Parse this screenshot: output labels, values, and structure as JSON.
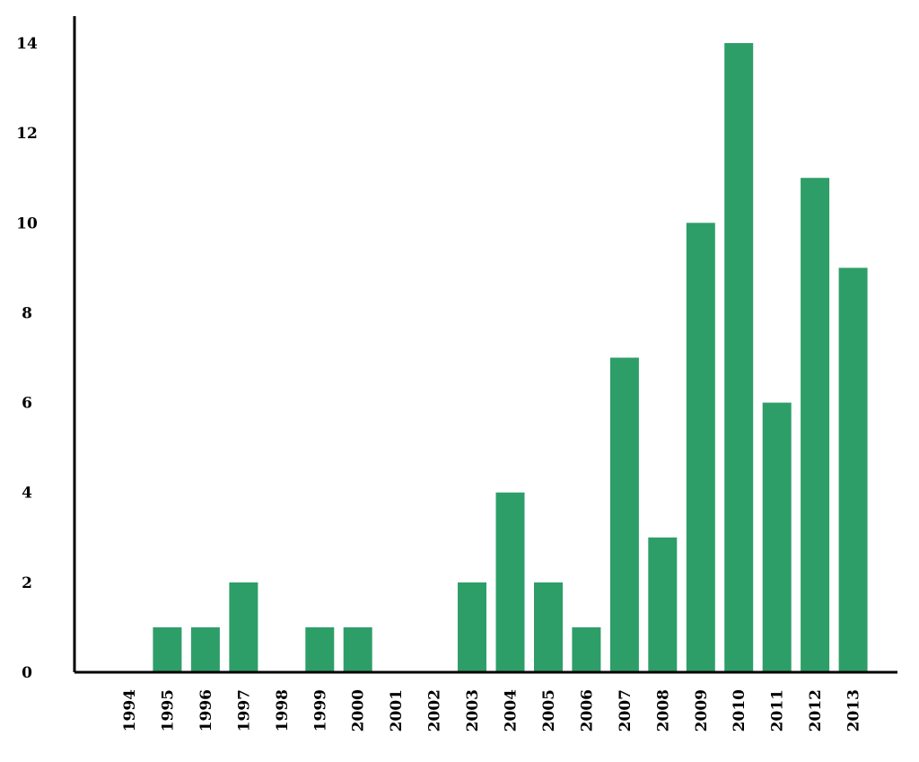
{
  "chart_data": {
    "type": "bar",
    "title": "",
    "xlabel": "",
    "ylabel": "",
    "categories": [
      "1994",
      "1995",
      "1996",
      "1997",
      "1998",
      "1999",
      "2000",
      "2001",
      "2002",
      "2003",
      "2004",
      "2005",
      "2006",
      "2007",
      "2008",
      "2009",
      "2010",
      "2011",
      "2012",
      "2013"
    ],
    "values": [
      0,
      1,
      1,
      2,
      0,
      1,
      1,
      0,
      0,
      2,
      4,
      2,
      1,
      7,
      3,
      10,
      14,
      6,
      11,
      9
    ],
    "ylim": [
      0,
      14
    ],
    "yticks": [
      0,
      2,
      4,
      6,
      8,
      10,
      12,
      14
    ],
    "bar_color": "#2e9e68",
    "grid": false,
    "legend": "none"
  }
}
